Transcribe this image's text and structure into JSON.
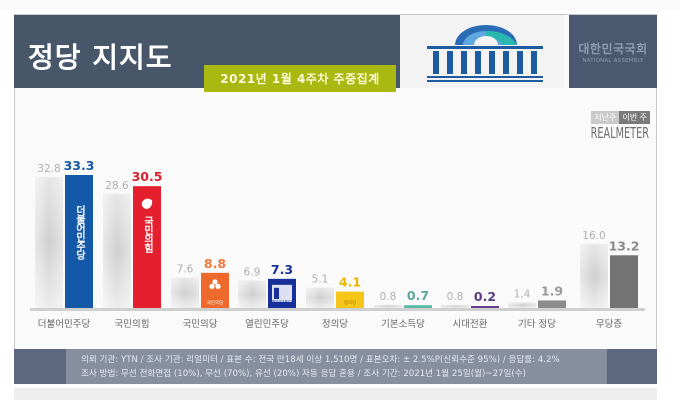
{
  "header": {
    "title": "정당 지지도",
    "date_badge": "2021년 1월 4주차 주중집계",
    "assembly_kor": "대한민국국회",
    "assembly_eng": "NATIONAL ASSEMBLY"
  },
  "legend": {
    "previous": "지난주",
    "current": "이번 주"
  },
  "brand": "REALMETER",
  "footer": {
    "line1": "의뢰 기관: YTN / 조사 기관: 리얼미터 / 표본 수: 전국 만18세 이상 1,510명 / 표본오차: ± 2.5%P(신뢰수준 95%) / 응답률: 4.2%",
    "line2": "조사 방법: 무선 전화면접 (10%), 무선 (70%), 유선 (20%) 자동 응답 혼용 / 조사 기간: 2021년 1월 25일(월)~27일(수)"
  },
  "colors": {
    "header_bg": "#48566a",
    "badge_bg": "#a9b912",
    "prev_bar": "#d9d9d9",
    "axis": "#cfcfcf"
  },
  "chart_data": {
    "type": "bar",
    "title": "정당 지지도",
    "subtitle": "2021년 1월 4주차 주중집계",
    "xlabel": "",
    "ylabel": "",
    "ylim": [
      0,
      35
    ],
    "grid": false,
    "legend_position": "top-right",
    "categories": [
      "더불어민주당",
      "국민의힘",
      "국민의당",
      "열린민주당",
      "정의당",
      "기본소득당",
      "시대전환",
      "기타 정당",
      "무당층"
    ],
    "series": [
      {
        "name": "지난주",
        "values": [
          32.8,
          28.6,
          7.6,
          6.9,
          5.1,
          0.8,
          0.8,
          1.4,
          16.0
        ]
      },
      {
        "name": "이번 주",
        "values": [
          33.3,
          30.5,
          8.8,
          7.3,
          4.1,
          0.7,
          0.2,
          1.9,
          13.2
        ]
      }
    ],
    "current_colors": [
      "#1459a8",
      "#e5202e",
      "#ee6a2c",
      "#17309a",
      "#f5c518",
      "#5cb8a5",
      "#6c3d8e",
      "#8c8c8c",
      "#747474"
    ],
    "label_colors": [
      "#1459a8",
      "#d9202e",
      "#ee7a3c",
      "#17309a",
      "#e8b800",
      "#5aa898",
      "#5b3a82",
      "#9a9a9a",
      "#8a8a8a"
    ],
    "bar_logos": [
      "더불어민주당",
      "국민의힘",
      "국민의당",
      "열린민주당",
      "정의당",
      "",
      "",
      "",
      ""
    ]
  }
}
